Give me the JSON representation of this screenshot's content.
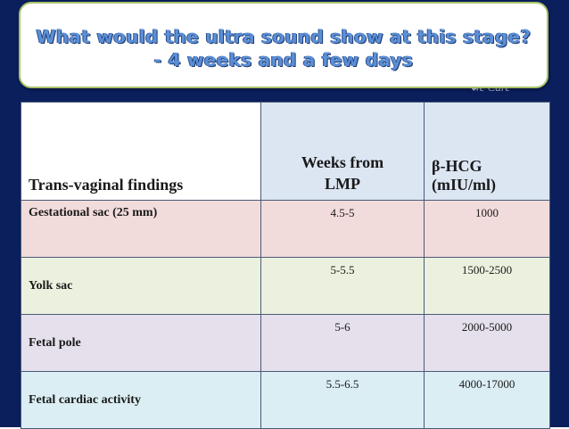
{
  "title": {
    "line1": "What would the ultra sound show at this stage?",
    "line2": "- 4 weeks and a few days"
  },
  "faint_text": "We Care",
  "table": {
    "headers": {
      "findings": "Trans-vaginal findings",
      "weeks_line1": "Weeks from",
      "weeks_line2": "LMP",
      "hcg": "β-HCG (mIU/ml)"
    },
    "rows": [
      {
        "finding": "Gestational sac (25 mm)",
        "weeks": "4.5-5",
        "hcg": "1000"
      },
      {
        "finding": "Yolk sac",
        "weeks": "5-5.5",
        "hcg": "1500-2500"
      },
      {
        "finding": "Fetal pole",
        "weeks": "5-6",
        "hcg": "2000-5000"
      },
      {
        "finding": "Fetal cardiac activity",
        "weeks": "5.5-6.5",
        "hcg": "4000-17000"
      }
    ]
  },
  "colors": {
    "background": "#0b1f5c",
    "title_text": "#5b8fd6",
    "title_border": "#a9c46a",
    "row_colors": [
      "#f2dcdb",
      "#ebf1de",
      "#e5e0ec",
      "#dbeef4"
    ]
  }
}
